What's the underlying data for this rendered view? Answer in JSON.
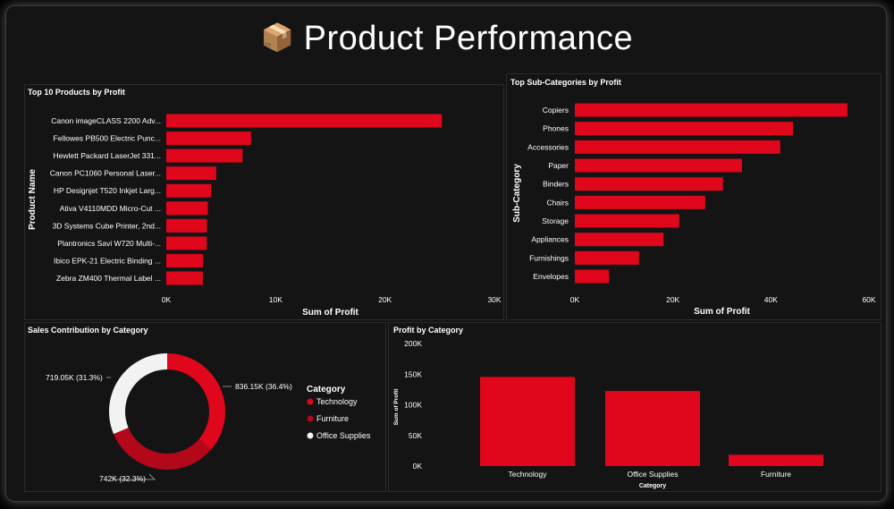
{
  "header": {
    "icon": "package-icon",
    "title": "Product Performance"
  },
  "colors": {
    "red": "#e0061b",
    "darkred": "#b3071a",
    "white": "#f2f2f2",
    "bg": "#141414",
    "axis": "#ffffff"
  },
  "chart_data": [
    {
      "type": "bar",
      "orientation": "horizontal",
      "title": "Top 10 Products by Profit",
      "xlabel": "Sum of Profit",
      "ylabel": "Product Name",
      "xlim": [
        0,
        30000
      ],
      "xticks": [
        0,
        10000,
        20000,
        30000
      ],
      "xtick_labels": [
        "0K",
        "10K",
        "20K",
        "30K"
      ],
      "categories": [
        "Canon imageCLASS 2200 Adv...",
        "Fellowes PB500 Electric Punc...",
        "Hewlett Packard LaserJet 331...",
        "Canon PC1060 Personal Laser...",
        "HP Designjet T520 Inkjet Larg...",
        "Ativa V4110MDD Micro-Cut ...",
        "3D Systems Cube Printer, 2nd...",
        "Plantronics Savi W720 Multi-...",
        "Ibico EPK-21 Electric Binding ...",
        "Zebra ZM400 Thermal Label ..."
      ],
      "values": [
        25200,
        7750,
        6980,
        4570,
        4100,
        3800,
        3720,
        3700,
        3350,
        3340
      ]
    },
    {
      "type": "bar",
      "orientation": "horizontal",
      "title": "Top Sub-Categories by Profit",
      "xlabel": "Sum of Profit",
      "ylabel": "Sub-Category",
      "xlim": [
        0,
        60000
      ],
      "xticks": [
        0,
        20000,
        40000,
        60000
      ],
      "xtick_labels": [
        "0K",
        "20K",
        "40K",
        "60K"
      ],
      "categories": [
        "Copiers",
        "Phones",
        "Accessories",
        "Paper",
        "Binders",
        "Chairs",
        "Storage",
        "Appliances",
        "Furnishings",
        "Envelopes"
      ],
      "values": [
        55600,
        44500,
        41900,
        34100,
        30200,
        26600,
        21300,
        18100,
        13100,
        6960
      ]
    },
    {
      "type": "pie",
      "donut": true,
      "title": "Sales Contribution by Category",
      "legend_title": "Category",
      "legend_position": "right",
      "categories": [
        "Technology",
        "Furniture",
        "Office Supplies"
      ],
      "values": [
        836150,
        742000,
        719050
      ],
      "data_labels": [
        "836.15K (36.4%)",
        "742K (32.3%)",
        "719.05K (31.3%)"
      ]
    },
    {
      "type": "bar",
      "orientation": "vertical",
      "title": "Profit by Category",
      "xlabel": "Category",
      "ylabel": "Sum of Profit",
      "ylim": [
        0,
        200000
      ],
      "yticks": [
        0,
        50000,
        100000,
        150000,
        200000
      ],
      "ytick_labels": [
        "0K",
        "50K",
        "100K",
        "150K",
        "200K"
      ],
      "categories": [
        "Technology",
        "Office Supplies",
        "Furniture"
      ],
      "values": [
        145500,
        122500,
        18500
      ]
    }
  ]
}
